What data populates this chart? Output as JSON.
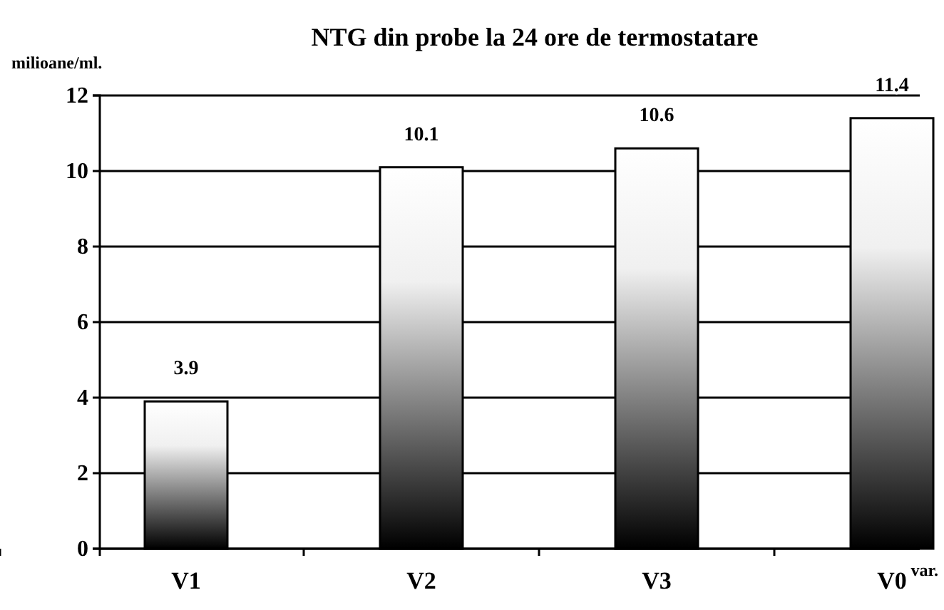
{
  "chart_data": {
    "type": "bar",
    "title": "NTG din probe la 24 ore de termostatare",
    "xlabel": "var.",
    "ylabel": "milioane/ml.",
    "categories": [
      "V1",
      "V2",
      "V3",
      "V0"
    ],
    "values": [
      3.9,
      10.1,
      10.6,
      11.4
    ],
    "ylim": [
      0,
      12
    ],
    "yticks": [
      0,
      2,
      4,
      6,
      8,
      10,
      12
    ],
    "grid": "y",
    "data_labels": true
  }
}
